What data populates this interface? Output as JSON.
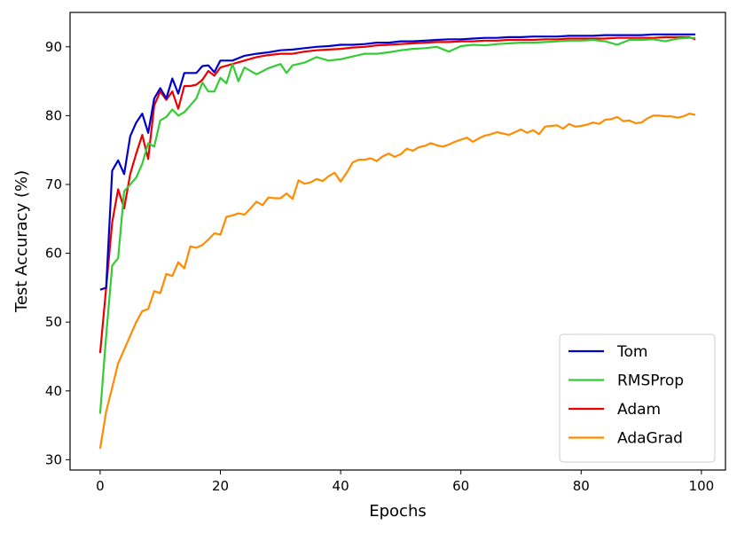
{
  "chart_data": {
    "type": "line",
    "xlabel": "Epochs",
    "ylabel": "Test Accuracy (%)",
    "xlim": [
      -5,
      104
    ],
    "ylim": [
      28.5,
      95
    ],
    "xticks": [
      0,
      20,
      40,
      60,
      80,
      100
    ],
    "yticks": [
      30,
      40,
      50,
      60,
      70,
      80,
      90
    ],
    "legend_position": "bottom-right",
    "grid": false,
    "series": [
      {
        "name": "Tom",
        "color": "#0000cc",
        "points": [
          [
            0,
            54.7
          ],
          [
            1,
            55.0
          ],
          [
            2,
            72.0
          ],
          [
            3,
            73.5
          ],
          [
            4,
            71.5
          ],
          [
            5,
            77.0
          ],
          [
            6,
            79.0
          ],
          [
            7,
            80.3
          ],
          [
            8,
            77.5
          ],
          [
            9,
            82.5
          ],
          [
            10,
            84.0
          ],
          [
            11,
            82.5
          ],
          [
            12,
            85.4
          ],
          [
            13,
            83.2
          ],
          [
            14,
            86.2
          ],
          [
            15,
            86.2
          ],
          [
            16,
            86.2
          ],
          [
            17,
            87.2
          ],
          [
            18,
            87.3
          ],
          [
            19,
            86.3
          ],
          [
            20,
            88.0
          ],
          [
            22,
            88.0
          ],
          [
            24,
            88.7
          ],
          [
            26,
            89.0
          ],
          [
            28,
            89.2
          ],
          [
            30,
            89.5
          ],
          [
            32,
            89.6
          ],
          [
            34,
            89.8
          ],
          [
            36,
            90.0
          ],
          [
            38,
            90.1
          ],
          [
            40,
            90.3
          ],
          [
            42,
            90.3
          ],
          [
            44,
            90.4
          ],
          [
            46,
            90.6
          ],
          [
            48,
            90.6
          ],
          [
            50,
            90.8
          ],
          [
            52,
            90.8
          ],
          [
            54,
            90.9
          ],
          [
            56,
            91.0
          ],
          [
            58,
            91.1
          ],
          [
            60,
            91.1
          ],
          [
            62,
            91.2
          ],
          [
            64,
            91.3
          ],
          [
            66,
            91.3
          ],
          [
            68,
            91.4
          ],
          [
            70,
            91.4
          ],
          [
            72,
            91.5
          ],
          [
            74,
            91.5
          ],
          [
            76,
            91.5
          ],
          [
            78,
            91.6
          ],
          [
            80,
            91.6
          ],
          [
            82,
            91.6
          ],
          [
            84,
            91.7
          ],
          [
            86,
            91.7
          ],
          [
            88,
            91.7
          ],
          [
            90,
            91.7
          ],
          [
            92,
            91.8
          ],
          [
            94,
            91.8
          ],
          [
            96,
            91.8
          ],
          [
            98,
            91.8
          ],
          [
            99,
            91.8
          ]
        ]
      },
      {
        "name": "RMSProp",
        "color": "#33cc33",
        "points": [
          [
            0,
            36.7
          ],
          [
            1,
            48.0
          ],
          [
            2,
            58.2
          ],
          [
            3,
            59.3
          ],
          [
            4,
            69.0
          ],
          [
            5,
            70.0
          ],
          [
            6,
            71.0
          ],
          [
            7,
            73.0
          ],
          [
            8,
            76.0
          ],
          [
            9,
            75.5
          ],
          [
            10,
            79.3
          ],
          [
            11,
            79.8
          ],
          [
            12,
            80.9
          ],
          [
            13,
            80.0
          ],
          [
            14,
            80.5
          ],
          [
            15,
            81.5
          ],
          [
            16,
            82.5
          ],
          [
            17,
            84.8
          ],
          [
            18,
            83.5
          ],
          [
            19,
            83.5
          ],
          [
            20,
            85.5
          ],
          [
            21,
            84.7
          ],
          [
            22,
            87.5
          ],
          [
            23,
            85.0
          ],
          [
            24,
            87.0
          ],
          [
            26,
            86.0
          ],
          [
            28,
            86.9
          ],
          [
            30,
            87.5
          ],
          [
            31,
            86.2
          ],
          [
            32,
            87.3
          ],
          [
            34,
            87.7
          ],
          [
            36,
            88.5
          ],
          [
            38,
            88.0
          ],
          [
            40,
            88.2
          ],
          [
            42,
            88.6
          ],
          [
            44,
            89.0
          ],
          [
            46,
            89.0
          ],
          [
            48,
            89.2
          ],
          [
            50,
            89.5
          ],
          [
            52,
            89.7
          ],
          [
            54,
            89.8
          ],
          [
            56,
            90.0
          ],
          [
            58,
            89.3
          ],
          [
            60,
            90.1
          ],
          [
            62,
            90.3
          ],
          [
            64,
            90.2
          ],
          [
            66,
            90.4
          ],
          [
            68,
            90.5
          ],
          [
            70,
            90.6
          ],
          [
            72,
            90.6
          ],
          [
            74,
            90.7
          ],
          [
            76,
            90.8
          ],
          [
            78,
            90.9
          ],
          [
            80,
            90.9
          ],
          [
            82,
            91.0
          ],
          [
            84,
            90.8
          ],
          [
            86,
            90.3
          ],
          [
            88,
            91.0
          ],
          [
            90,
            91.0
          ],
          [
            92,
            91.1
          ],
          [
            94,
            90.8
          ],
          [
            96,
            91.2
          ],
          [
            98,
            91.3
          ],
          [
            99,
            91.3
          ]
        ]
      },
      {
        "name": "Adam",
        "color": "#ee0000",
        "points": [
          [
            0,
            45.5
          ],
          [
            1,
            55.0
          ],
          [
            2,
            64.5
          ],
          [
            3,
            69.3
          ],
          [
            4,
            66.5
          ],
          [
            5,
            71.5
          ],
          [
            6,
            74.5
          ],
          [
            7,
            77.2
          ],
          [
            8,
            73.7
          ],
          [
            9,
            81.5
          ],
          [
            10,
            83.5
          ],
          [
            11,
            82.3
          ],
          [
            12,
            83.5
          ],
          [
            13,
            81.0
          ],
          [
            14,
            84.3
          ],
          [
            15,
            84.3
          ],
          [
            16,
            84.5
          ],
          [
            17,
            85.2
          ],
          [
            18,
            86.5
          ],
          [
            19,
            85.8
          ],
          [
            20,
            87.0
          ],
          [
            22,
            87.5
          ],
          [
            24,
            88.0
          ],
          [
            26,
            88.5
          ],
          [
            28,
            88.8
          ],
          [
            30,
            89.0
          ],
          [
            32,
            89.0
          ],
          [
            34,
            89.3
          ],
          [
            36,
            89.5
          ],
          [
            38,
            89.6
          ],
          [
            40,
            89.7
          ],
          [
            42,
            89.9
          ],
          [
            44,
            90.0
          ],
          [
            46,
            90.2
          ],
          [
            48,
            90.3
          ],
          [
            50,
            90.4
          ],
          [
            52,
            90.5
          ],
          [
            54,
            90.6
          ],
          [
            56,
            90.7
          ],
          [
            58,
            90.7
          ],
          [
            60,
            90.8
          ],
          [
            62,
            90.8
          ],
          [
            64,
            90.9
          ],
          [
            66,
            90.9
          ],
          [
            68,
            91.0
          ],
          [
            70,
            91.0
          ],
          [
            72,
            91.0
          ],
          [
            74,
            91.1
          ],
          [
            76,
            91.1
          ],
          [
            78,
            91.2
          ],
          [
            80,
            91.2
          ],
          [
            82,
            91.2
          ],
          [
            84,
            91.2
          ],
          [
            86,
            91.3
          ],
          [
            88,
            91.3
          ],
          [
            90,
            91.3
          ],
          [
            92,
            91.3
          ],
          [
            94,
            91.4
          ],
          [
            96,
            91.4
          ],
          [
            98,
            91.4
          ],
          [
            99,
            91.1
          ]
        ]
      },
      {
        "name": "AdaGrad",
        "color": "#ff8c00",
        "points": [
          [
            0,
            31.6
          ],
          [
            1,
            37.0
          ],
          [
            2,
            40.5
          ],
          [
            3,
            44.0
          ],
          [
            4,
            46.0
          ],
          [
            5,
            48.0
          ],
          [
            6,
            50.0
          ],
          [
            7,
            51.6
          ],
          [
            8,
            51.9
          ],
          [
            9,
            54.5
          ],
          [
            10,
            54.2
          ],
          [
            11,
            57.0
          ],
          [
            12,
            56.7
          ],
          [
            13,
            58.7
          ],
          [
            14,
            57.8
          ],
          [
            15,
            61.0
          ],
          [
            16,
            60.8
          ],
          [
            17,
            61.2
          ],
          [
            18,
            62.0
          ],
          [
            19,
            62.9
          ],
          [
            20,
            62.7
          ],
          [
            21,
            65.3
          ],
          [
            22,
            65.5
          ],
          [
            23,
            65.8
          ],
          [
            24,
            65.6
          ],
          [
            25,
            66.5
          ],
          [
            26,
            67.5
          ],
          [
            27,
            67.0
          ],
          [
            28,
            68.1
          ],
          [
            29,
            68.0
          ],
          [
            30,
            68.0
          ],
          [
            31,
            68.7
          ],
          [
            32,
            67.9
          ],
          [
            33,
            70.6
          ],
          [
            34,
            70.1
          ],
          [
            35,
            70.3
          ],
          [
            36,
            70.8
          ],
          [
            37,
            70.5
          ],
          [
            38,
            71.2
          ],
          [
            39,
            71.7
          ],
          [
            40,
            70.4
          ],
          [
            41,
            71.7
          ],
          [
            42,
            73.2
          ],
          [
            43,
            73.6
          ],
          [
            44,
            73.6
          ],
          [
            45,
            73.8
          ],
          [
            46,
            73.4
          ],
          [
            47,
            74.1
          ],
          [
            48,
            74.5
          ],
          [
            49,
            74.0
          ],
          [
            50,
            74.4
          ],
          [
            51,
            75.2
          ],
          [
            52,
            74.9
          ],
          [
            53,
            75.4
          ],
          [
            54,
            75.6
          ],
          [
            55,
            76.0
          ],
          [
            56,
            75.7
          ],
          [
            57,
            75.5
          ],
          [
            58,
            75.8
          ],
          [
            59,
            76.2
          ],
          [
            60,
            76.5
          ],
          [
            61,
            76.8
          ],
          [
            62,
            76.2
          ],
          [
            63,
            76.7
          ],
          [
            64,
            77.1
          ],
          [
            65,
            77.3
          ],
          [
            66,
            77.6
          ],
          [
            67,
            77.4
          ],
          [
            68,
            77.2
          ],
          [
            69,
            77.6
          ],
          [
            70,
            78.0
          ],
          [
            71,
            77.5
          ],
          [
            72,
            77.9
          ],
          [
            73,
            77.3
          ],
          [
            74,
            78.4
          ],
          [
            75,
            78.5
          ],
          [
            76,
            78.6
          ],
          [
            77,
            78.1
          ],
          [
            78,
            78.8
          ],
          [
            79,
            78.4
          ],
          [
            80,
            78.5
          ],
          [
            81,
            78.7
          ],
          [
            82,
            79.0
          ],
          [
            83,
            78.8
          ],
          [
            84,
            79.4
          ],
          [
            85,
            79.5
          ],
          [
            86,
            79.8
          ],
          [
            87,
            79.2
          ],
          [
            88,
            79.3
          ],
          [
            89,
            78.9
          ],
          [
            90,
            79.0
          ],
          [
            91,
            79.6
          ],
          [
            92,
            80.0
          ],
          [
            93,
            80.0
          ],
          [
            94,
            79.9
          ],
          [
            95,
            79.9
          ],
          [
            96,
            79.7
          ],
          [
            97,
            79.9
          ],
          [
            98,
            80.3
          ],
          [
            99,
            80.1
          ]
        ]
      }
    ]
  }
}
